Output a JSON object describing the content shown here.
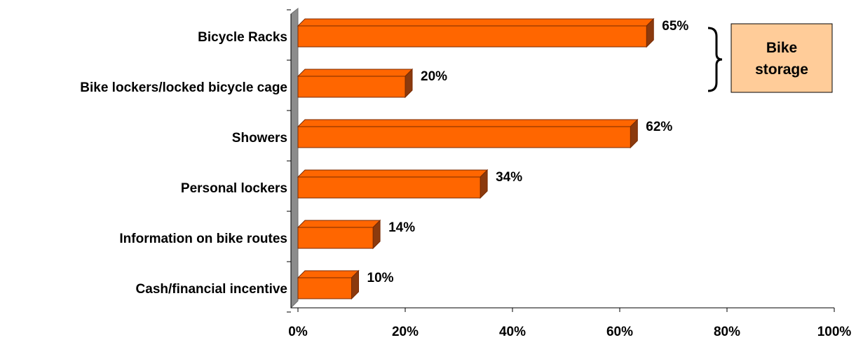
{
  "colors": {
    "bar_front": "#FF6600",
    "bar_top": "#FF6600",
    "bar_side": "#8B3A0E",
    "bar_edge": "#7A2A00",
    "wall": "#8C8C8C",
    "callout_fill": "#FFCC99",
    "axis": "#000000"
  },
  "chart_data": {
    "type": "bar",
    "orientation": "horizontal",
    "style": "3d",
    "categories": [
      "Bicycle Racks",
      "Bike lockers/locked bicycle cage",
      "Showers",
      "Personal lockers",
      "Information on bike routes",
      "Cash/financial incentive"
    ],
    "values": [
      65,
      20,
      62,
      34,
      14,
      10
    ],
    "value_labels": [
      "65%",
      "20%",
      "62%",
      "34%",
      "14%",
      "10%"
    ],
    "xlim": [
      0,
      100
    ],
    "x_ticks": [
      "0%",
      "20%",
      "40%",
      "60%",
      "80%",
      "100%"
    ],
    "x_tick_values": [
      0,
      20,
      40,
      60,
      80,
      100
    ],
    "title": "",
    "xlabel": "",
    "ylabel": "",
    "grid": false,
    "legend": "none",
    "annotation": {
      "text": "Bike storage",
      "lines": [
        "Bike",
        "storage"
      ],
      "brackets_categories": [
        "Bicycle Racks",
        "Bike lockers/locked bicycle cage"
      ]
    }
  }
}
